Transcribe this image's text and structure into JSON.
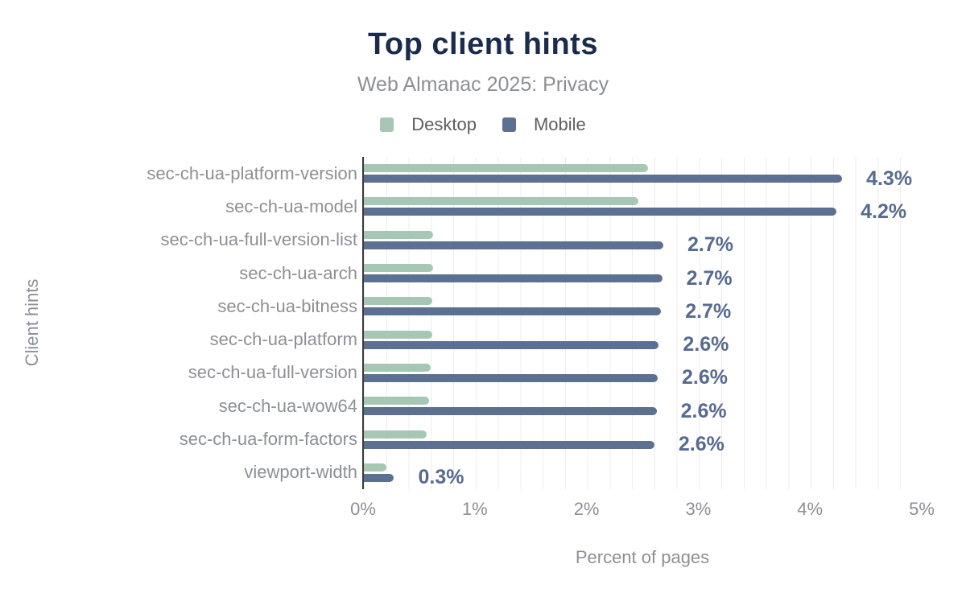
{
  "header": {
    "title": "Top client hints",
    "subtitle": "Web Almanac 2025: Privacy"
  },
  "legend": {
    "items": [
      {
        "label": "Desktop",
        "color": "#a6c7b4"
      },
      {
        "label": "Mobile",
        "color": "#5c7192"
      }
    ]
  },
  "axes": {
    "x_title": "Percent of pages",
    "y_title": "Client hints",
    "x_ticks": [
      "0%",
      "1%",
      "2%",
      "3%",
      "4%",
      "5%"
    ]
  },
  "chart_data": {
    "type": "bar",
    "orientation": "horizontal",
    "title": "Top client hints",
    "subtitle": "Web Almanac 2025: Privacy",
    "xlabel": "Percent of pages",
    "ylabel": "Client hints",
    "xlim": [
      0,
      5
    ],
    "x_tick_labels": [
      "0%",
      "1%",
      "2%",
      "3%",
      "4%",
      "5%"
    ],
    "grid": true,
    "gridline_step_percent": 0.2,
    "legend_position": "top",
    "categories": [
      "sec-ch-ua-platform-version",
      "sec-ch-ua-model",
      "sec-ch-ua-full-version-list",
      "sec-ch-ua-arch",
      "sec-ch-ua-bitness",
      "sec-ch-ua-platform",
      "sec-ch-ua-full-version",
      "sec-ch-ua-wow64",
      "sec-ch-ua-form-factors",
      "viewport-width"
    ],
    "series": [
      {
        "name": "Desktop",
        "color": "#a6c7b4",
        "values": [
          2.54,
          2.46,
          0.62,
          0.62,
          0.61,
          0.61,
          0.6,
          0.58,
          0.56,
          0.2
        ]
      },
      {
        "name": "Mobile",
        "color": "#5c7192",
        "values": [
          4.28,
          4.23,
          2.68,
          2.67,
          2.66,
          2.64,
          2.63,
          2.62,
          2.6,
          0.27
        ],
        "data_labels": [
          "4.3%",
          "4.2%",
          "2.7%",
          "2.7%",
          "2.7%",
          "2.6%",
          "2.6%",
          "2.6%",
          "2.6%",
          "0.3%"
        ]
      }
    ]
  },
  "colors": {
    "background": "#ffffff",
    "title": "#1a2b4d",
    "subtitle": "#8c8f94",
    "axis_text": "#8c9096",
    "legend_text": "#5a5d63",
    "value_label": "#566b8f",
    "axis_line": "#373a3c",
    "gridline": "#ededee"
  }
}
